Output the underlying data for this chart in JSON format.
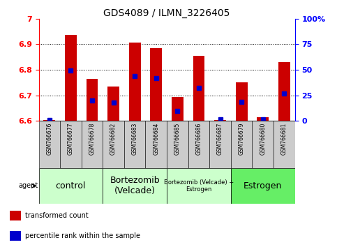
{
  "title": "GDS4089 / ILMN_3226405",
  "samples": [
    "GSM766676",
    "GSM766677",
    "GSM766678",
    "GSM766682",
    "GSM766683",
    "GSM766684",
    "GSM766685",
    "GSM766686",
    "GSM766687",
    "GSM766679",
    "GSM766680",
    "GSM766681"
  ],
  "transformed_count": [
    6.605,
    6.935,
    6.765,
    6.735,
    6.905,
    6.885,
    6.695,
    6.855,
    6.605,
    6.75,
    6.615,
    6.83
  ],
  "percentile_rank": [
    1,
    49,
    20,
    18,
    44,
    42,
    10,
    32,
    2,
    19,
    2,
    27
  ],
  "ymin": 6.6,
  "ymax": 7.0,
  "yticks": [
    6.6,
    6.7,
    6.8,
    6.9,
    7.0
  ],
  "ytick_labels": [
    "6.6",
    "6.7",
    "6.8",
    "6.9",
    "7"
  ],
  "right_yticks_pct": [
    0,
    25,
    50,
    75,
    100
  ],
  "right_ytick_labels": [
    "0",
    "25",
    "50",
    "75",
    "100%"
  ],
  "bar_color": "#cc0000",
  "percentile_color": "#0000cc",
  "bg_color": "#ffffff",
  "plot_bg": "#ffffff",
  "sample_label_bg": "#cccccc",
  "group_defs": [
    {
      "start": 0,
      "end": 2,
      "label": "control",
      "color": "#ccffcc",
      "fontsize": 9
    },
    {
      "start": 3,
      "end": 5,
      "label": "Bortezomib\n(Velcade)",
      "color": "#ccffcc",
      "fontsize": 9
    },
    {
      "start": 6,
      "end": 8,
      "label": "Bortezomib (Velcade) +\nEstrogen",
      "color": "#ccffcc",
      "fontsize": 6
    },
    {
      "start": 9,
      "end": 11,
      "label": "Estrogen",
      "color": "#66ee66",
      "fontsize": 9
    }
  ],
  "legend_items": [
    {
      "label": "transformed count",
      "color": "#cc0000"
    },
    {
      "label": "percentile rank within the sample",
      "color": "#0000cc"
    }
  ],
  "agent_label": "agent",
  "bar_width": 0.55,
  "marker_size": 4
}
